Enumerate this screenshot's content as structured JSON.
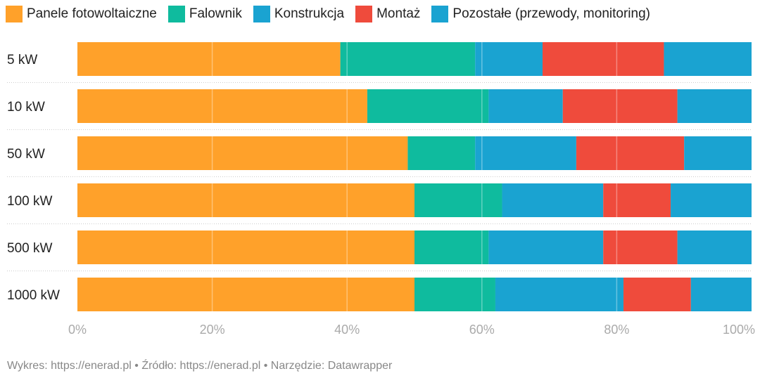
{
  "chart_data": {
    "type": "bar",
    "orientation": "horizontal",
    "stacked": true,
    "categories": [
      "5 kW",
      "10 kW",
      "50 kW",
      "100 kW",
      "500 kW",
      "1000 kW"
    ],
    "series": [
      {
        "name": "Panele fotowoltaiczne",
        "color": "#ffa12a",
        "values": [
          39,
          43,
          49,
          50,
          50,
          50
        ]
      },
      {
        "name": "Falownik",
        "color": "#0fbb9e",
        "values": [
          20,
          18,
          10,
          13,
          11,
          12
        ]
      },
      {
        "name": "Konstrukcja",
        "color": "#1aa3d1",
        "values": [
          10,
          11,
          15,
          15,
          17,
          19
        ]
      },
      {
        "name": "Montaż",
        "color": "#ef4b3c",
        "values": [
          18,
          17,
          16,
          10,
          11,
          10
        ]
      },
      {
        "name": "Pozostałe (przewody, monitoring)",
        "color": "#1aa3d1",
        "values": [
          13,
          11,
          10,
          12,
          11,
          9
        ]
      }
    ],
    "xticks": [
      "0%",
      "20%",
      "40%",
      "60%",
      "80%",
      "100%"
    ],
    "xlim": [
      0,
      100
    ],
    "grid": true,
    "legend": "top"
  },
  "footer": "Wykres: https://enerad.pl • Źródło: https://enerad.pl • Narzędzie: Datawrapper"
}
